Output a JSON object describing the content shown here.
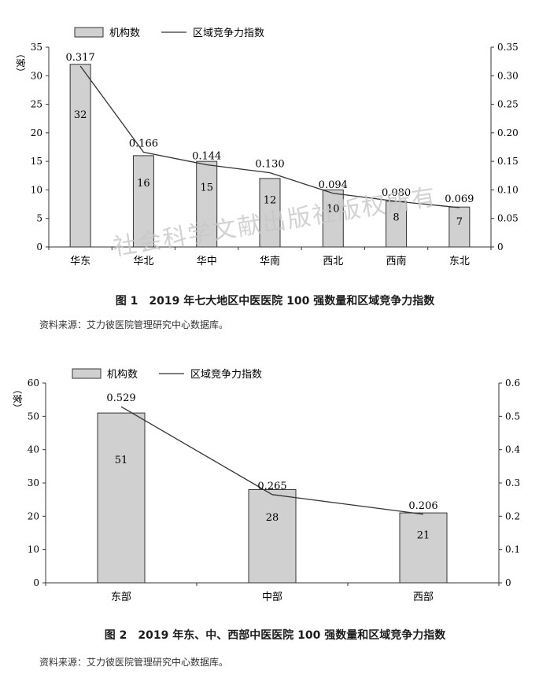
{
  "watermark": "社会科学文献出版社版权所有",
  "chart_data": [
    {
      "type": "bar",
      "legend": {
        "bar": "机构数",
        "line": "区域竞争力指数"
      },
      "yunit": "（家）",
      "categories": [
        "华东",
        "华北",
        "华中",
        "华南",
        "西北",
        "西南",
        "东北"
      ],
      "series": [
        {
          "name": "机构数",
          "type": "bar",
          "values": [
            32,
            16,
            15,
            12,
            10,
            8,
            7
          ]
        },
        {
          "name": "区域竞争力指数",
          "type": "line",
          "values": [
            0.317,
            0.166,
            0.144,
            0.13,
            0.094,
            0.08,
            0.069
          ]
        }
      ],
      "ylim": [
        0,
        35
      ],
      "yticks": [
        "0",
        "5",
        "10",
        "15",
        "20",
        "25",
        "30",
        "35"
      ],
      "y2lim": [
        0,
        0.35
      ],
      "y2ticks": [
        "0",
        "0.05",
        "0.10",
        "0.15",
        "0.20",
        "0.25",
        "0.30",
        "0.35"
      ],
      "bar_labels": [
        "32",
        "16",
        "15",
        "12",
        "10",
        "8",
        "7"
      ],
      "line_labels": [
        "0.317",
        "0.166",
        "0.144",
        "0.130",
        "0.094",
        "0.080",
        "0.069"
      ],
      "caption": "图 1　2019 年七大地区中医医院 100 强数量和区域竞争力指数",
      "source": "资料来源：艾力彼医院管理研究中心数据库。"
    },
    {
      "type": "bar",
      "legend": {
        "bar": "机构数",
        "line": "区域竞争力指数"
      },
      "yunit": "（家）",
      "categories": [
        "东部",
        "中部",
        "西部"
      ],
      "series": [
        {
          "name": "机构数",
          "type": "bar",
          "values": [
            51,
            28,
            21
          ]
        },
        {
          "name": "区域竞争力指数",
          "type": "line",
          "values": [
            0.529,
            0.265,
            0.206
          ]
        }
      ],
      "ylim": [
        0,
        60
      ],
      "yticks": [
        "0",
        "10",
        "20",
        "30",
        "40",
        "50",
        "60"
      ],
      "y2lim": [
        0,
        0.6
      ],
      "y2ticks": [
        "0",
        "0.1",
        "0.2",
        "0.3",
        "0.4",
        "0.5",
        "0.6"
      ],
      "bar_labels": [
        "51",
        "28",
        "21"
      ],
      "line_labels": [
        "0.529",
        "0.265",
        "0.206"
      ],
      "caption": "图 2　2019 年东、中、西部中医医院 100 强数量和区域竞争力指数",
      "source": "资料来源：艾力彼医院管理研究中心数据库。"
    }
  ]
}
